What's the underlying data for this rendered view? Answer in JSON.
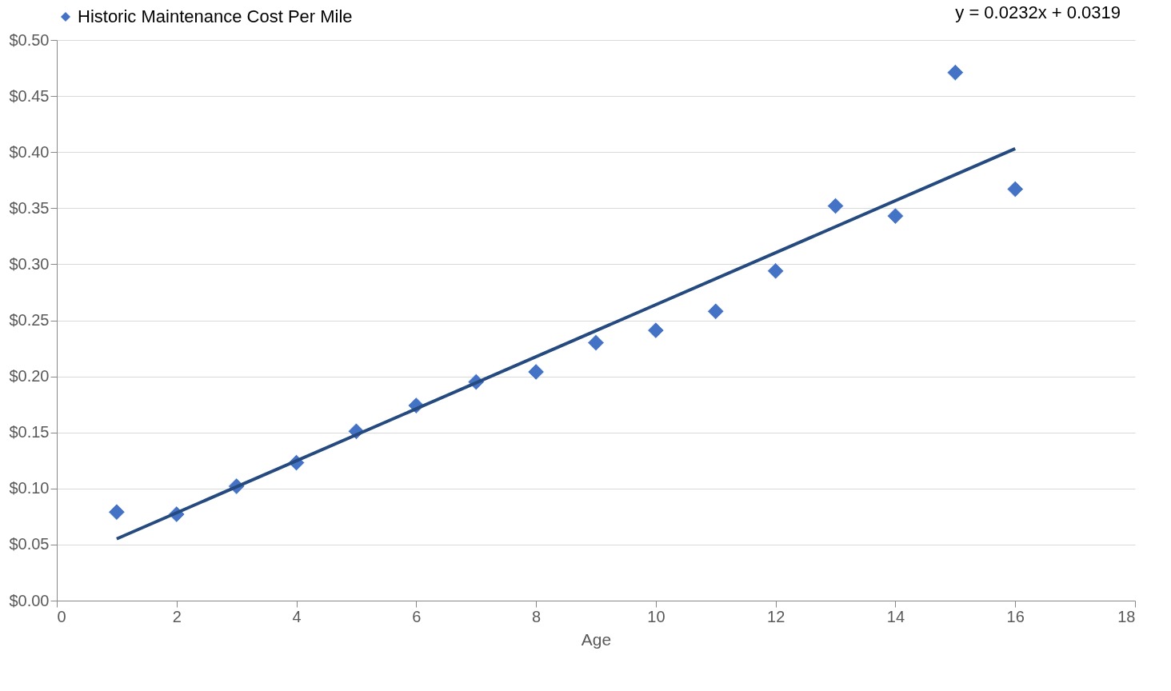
{
  "chart_data": {
    "type": "scatter",
    "xlabel": "Age",
    "annotations": [
      "y = 0.0232x + 0.0319"
    ],
    "series": [
      {
        "name": "Historic Maintenance Cost Per Mile",
        "color": "#4472c4",
        "marker": "diamond",
        "x": [
          1,
          2,
          3,
          4,
          5,
          6,
          7,
          8,
          9,
          10,
          11,
          12,
          13,
          14,
          15,
          16
        ],
        "values": [
          0.079,
          0.077,
          0.102,
          0.123,
          0.151,
          0.174,
          0.195,
          0.204,
          0.23,
          0.241,
          0.258,
          0.294,
          0.352,
          0.343,
          0.471,
          0.367
        ]
      },
      {
        "type": "line",
        "color": "#254a7f",
        "x": [
          1,
          16
        ],
        "values": [
          0.0551,
          0.4031
        ]
      }
    ],
    "xlim": [
      0,
      18
    ],
    "xticks": [
      0,
      2,
      4,
      6,
      8,
      10,
      12,
      14,
      16,
      18
    ],
    "ylim": [
      0,
      0.5
    ],
    "yticks": [
      {
        "value": 0,
        "label": "$0.00"
      },
      {
        "value": 0.05,
        "label": "$0.05"
      },
      {
        "value": 0.1,
        "label": "$0.10"
      },
      {
        "value": 0.15,
        "label": "$0.15"
      },
      {
        "value": 0.2,
        "label": "$0.20"
      },
      {
        "value": 0.25,
        "label": "$0.25"
      },
      {
        "value": 0.3,
        "label": "$0.30"
      },
      {
        "value": 0.35,
        "label": "$0.35"
      },
      {
        "value": 0.4,
        "label": "$0.40"
      },
      {
        "value": 0.45,
        "label": "$0.45"
      },
      {
        "value": 0.5,
        "label": "$0.50"
      }
    ],
    "grid": "y",
    "legend": "top"
  }
}
